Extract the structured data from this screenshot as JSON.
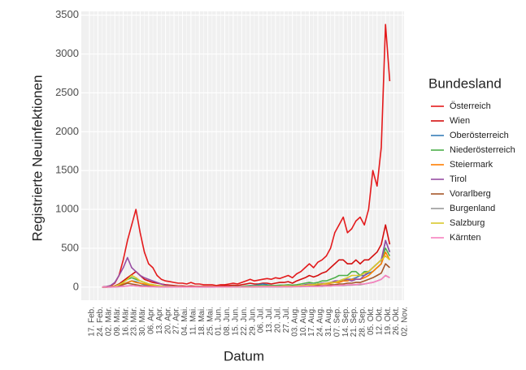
{
  "chart_data": {
    "type": "line",
    "y_label": "Registrierte Neuinfektionen",
    "x_label": "Datum",
    "legend_title": "Bundesland",
    "legend": "right",
    "grid": true,
    "categories": [
      "17. Feb.",
      null,
      "24. Feb.",
      null,
      "02. Mär.",
      null,
      "09. Mär.",
      null,
      "16. Mär.",
      null,
      "23. Mär.",
      null,
      "30. Mär.",
      null,
      "06. Apr.",
      null,
      "13. Apr.",
      null,
      "20. Apr.",
      null,
      "27. Apr.",
      null,
      "04. Mai.",
      null,
      "11. Mai.",
      null,
      "18. Mai.",
      null,
      "25. Mai.",
      null,
      "01. Jun.",
      null,
      "08. Jun.",
      null,
      "15. Jun.",
      null,
      "22. Jun.",
      null,
      "29. Jun.",
      null,
      "06. Jul.",
      null,
      "13. Jul.",
      null,
      "20. Jul.",
      null,
      "27. Jul.",
      null,
      "03. Aug.",
      null,
      "10. Aug.",
      null,
      "17. Aug.",
      null,
      "24. Aug.",
      null,
      "31. Aug.",
      null,
      "07. Sep.",
      null,
      "14. Sep.",
      null,
      "21. Sep.",
      null,
      "28. Sep.",
      null,
      "05. Okt.",
      null,
      "12. Okt.",
      null,
      "19. Okt.",
      null,
      "26. Okt.",
      null,
      "02. Nov."
    ],
    "ylim": [
      -169,
      3549
    ],
    "yticks": [
      0,
      500,
      1000,
      1500,
      2000,
      2500,
      3000,
      3500
    ],
    "series": [
      {
        "name": "Österreich",
        "color": "#e41a1c",
        "values": [
          null,
          null,
          null,
          0,
          5,
          15,
          50,
          150,
          350,
          600,
          800,
          1000,
          700,
          450,
          300,
          250,
          150,
          100,
          80,
          70,
          60,
          50,
          50,
          40,
          60,
          40,
          40,
          30,
          30,
          30,
          20,
          30,
          30,
          40,
          50,
          40,
          60,
          80,
          100,
          80,
          90,
          100,
          110,
          100,
          120,
          110,
          130,
          150,
          120,
          170,
          200,
          250,
          300,
          250,
          320,
          350,
          400,
          500,
          700,
          800,
          900,
          700,
          750,
          850,
          900,
          800,
          1000,
          1500,
          1300,
          1800,
          3380,
          2650,
          null,
          null,
          null
        ]
      },
      {
        "name": "Wien",
        "color": "#d40f0f",
        "values": [
          null,
          null,
          null,
          0,
          2,
          5,
          15,
          40,
          80,
          120,
          160,
          200,
          150,
          100,
          80,
          60,
          50,
          40,
          30,
          25,
          20,
          15,
          15,
          10,
          15,
          10,
          10,
          10,
          10,
          10,
          10,
          15,
          20,
          20,
          25,
          20,
          30,
          40,
          50,
          40,
          40,
          50,
          50,
          40,
          50,
          60,
          60,
          70,
          50,
          80,
          100,
          120,
          150,
          130,
          150,
          180,
          200,
          250,
          300,
          350,
          350,
          300,
          300,
          350,
          300,
          350,
          350,
          400,
          450,
          550,
          800,
          550,
          null,
          null,
          null
        ]
      },
      {
        "name": "Oberösterreich",
        "color": "#377eb8",
        "values": [
          null,
          null,
          null,
          0,
          0,
          2,
          5,
          15,
          40,
          60,
          80,
          70,
          50,
          30,
          20,
          15,
          10,
          8,
          5,
          5,
          3,
          3,
          3,
          2,
          2,
          2,
          2,
          2,
          2,
          2,
          3,
          3,
          5,
          5,
          5,
          5,
          10,
          15,
          20,
          20,
          30,
          40,
          30,
          20,
          20,
          15,
          15,
          10,
          10,
          15,
          20,
          20,
          30,
          30,
          40,
          40,
          50,
          60,
          60,
          80,
          80,
          100,
          100,
          120,
          150,
          150,
          180,
          200,
          250,
          300,
          600,
          450,
          null,
          null,
          null
        ]
      },
      {
        "name": "Niederösterreich",
        "color": "#4daf4a",
        "values": [
          null,
          null,
          null,
          0,
          0,
          2,
          10,
          30,
          60,
          100,
          120,
          100,
          80,
          60,
          40,
          30,
          20,
          15,
          10,
          10,
          8,
          5,
          5,
          5,
          5,
          5,
          3,
          3,
          3,
          3,
          5,
          5,
          5,
          5,
          10,
          8,
          10,
          15,
          15,
          15,
          20,
          20,
          20,
          20,
          20,
          25,
          25,
          30,
          25,
          30,
          40,
          50,
          60,
          50,
          60,
          80,
          80,
          100,
          120,
          150,
          150,
          150,
          200,
          200,
          150,
          200,
          200,
          250,
          300,
          350,
          500,
          400,
          null,
          null,
          null
        ]
      },
      {
        "name": "Steiermark",
        "color": "#ff7f00",
        "values": [
          null,
          null,
          null,
          0,
          0,
          1,
          5,
          20,
          40,
          60,
          80,
          60,
          50,
          40,
          30,
          20,
          15,
          10,
          5,
          5,
          3,
          3,
          3,
          2,
          2,
          2,
          2,
          2,
          2,
          2,
          2,
          3,
          3,
          3,
          3,
          3,
          5,
          5,
          5,
          5,
          5,
          5,
          10,
          10,
          10,
          10,
          15,
          15,
          10,
          15,
          20,
          20,
          30,
          30,
          30,
          40,
          40,
          50,
          60,
          60,
          80,
          80,
          100,
          100,
          100,
          120,
          150,
          200,
          250,
          300,
          450,
          350,
          null,
          null,
          null
        ]
      },
      {
        "name": "Tirol",
        "color": "#984ea3",
        "values": [
          null,
          null,
          null,
          0,
          5,
          20,
          60,
          150,
          250,
          380,
          250,
          200,
          150,
          120,
          100,
          80,
          60,
          40,
          20,
          15,
          10,
          8,
          5,
          5,
          3,
          3,
          2,
          2,
          2,
          2,
          2,
          2,
          3,
          3,
          3,
          3,
          3,
          5,
          5,
          5,
          10,
          10,
          10,
          10,
          10,
          10,
          15,
          15,
          10,
          15,
          20,
          30,
          40,
          30,
          40,
          50,
          50,
          60,
          80,
          80,
          100,
          100,
          80,
          100,
          100,
          150,
          200,
          250,
          300,
          350,
          600,
          450,
          null,
          null,
          null
        ]
      },
      {
        "name": "Vorarlberg",
        "color": "#a65628",
        "values": [
          null,
          null,
          null,
          0,
          0,
          2,
          5,
          15,
          30,
          50,
          40,
          30,
          20,
          15,
          10,
          8,
          5,
          3,
          2,
          2,
          1,
          1,
          1,
          1,
          1,
          1,
          1,
          1,
          1,
          1,
          1,
          2,
          2,
          2,
          2,
          2,
          3,
          5,
          5,
          5,
          5,
          5,
          5,
          5,
          5,
          5,
          5,
          5,
          5,
          10,
          10,
          10,
          15,
          15,
          20,
          20,
          20,
          30,
          30,
          40,
          40,
          50,
          50,
          60,
          60,
          80,
          100,
          120,
          150,
          180,
          300,
          250,
          null,
          null,
          null
        ]
      },
      {
        "name": "Burgenland",
        "color": "#999999",
        "values": [
          null,
          null,
          null,
          0,
          0,
          0,
          2,
          5,
          10,
          15,
          20,
          15,
          10,
          8,
          5,
          5,
          3,
          2,
          2,
          1,
          1,
          1,
          1,
          1,
          1,
          1,
          0,
          0,
          0,
          0,
          1,
          1,
          1,
          1,
          1,
          1,
          2,
          2,
          2,
          3,
          3,
          3,
          3,
          3,
          3,
          3,
          5,
          5,
          5,
          5,
          5,
          10,
          10,
          10,
          10,
          10,
          15,
          15,
          20,
          20,
          20,
          25,
          25,
          30,
          30,
          40,
          50,
          60,
          80,
          100,
          150,
          120,
          null,
          null,
          null
        ]
      },
      {
        "name": "Salzburg",
        "color": "#d9c82b",
        "values": [
          null,
          null,
          null,
          0,
          0,
          2,
          10,
          30,
          60,
          100,
          150,
          120,
          80,
          60,
          40,
          30,
          20,
          15,
          10,
          8,
          5,
          5,
          3,
          2,
          2,
          2,
          2,
          2,
          2,
          2,
          2,
          2,
          3,
          3,
          3,
          3,
          5,
          5,
          5,
          10,
          10,
          10,
          10,
          10,
          10,
          10,
          15,
          15,
          10,
          15,
          20,
          20,
          30,
          30,
          40,
          40,
          50,
          60,
          60,
          80,
          100,
          120,
          150,
          150,
          150,
          180,
          200,
          250,
          300,
          350,
          400,
          350,
          null,
          null,
          null
        ]
      },
      {
        "name": "Kärnten",
        "color": "#f781bf",
        "values": [
          null,
          null,
          null,
          0,
          0,
          0,
          2,
          5,
          10,
          15,
          20,
          15,
          10,
          8,
          5,
          5,
          3,
          2,
          2,
          1,
          1,
          1,
          1,
          1,
          1,
          1,
          1,
          1,
          1,
          1,
          1,
          2,
          2,
          2,
          2,
          2,
          3,
          3,
          3,
          5,
          5,
          5,
          5,
          5,
          5,
          5,
          5,
          5,
          5,
          5,
          10,
          10,
          10,
          10,
          10,
          15,
          15,
          15,
          20,
          20,
          25,
          30,
          30,
          30,
          40,
          40,
          50,
          60,
          80,
          100,
          150,
          120,
          null,
          null,
          null
        ]
      }
    ]
  }
}
